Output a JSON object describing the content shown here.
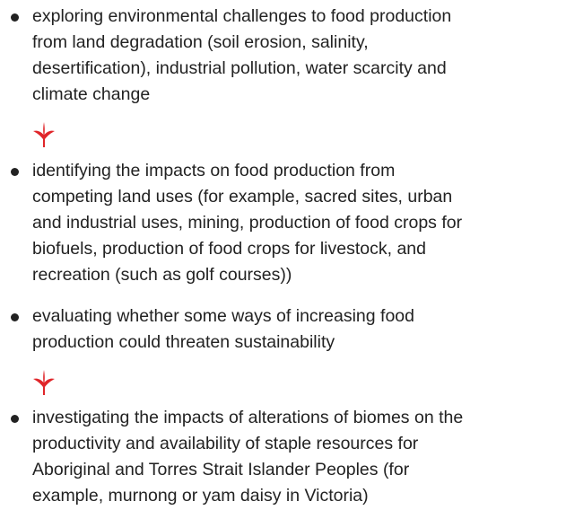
{
  "list": {
    "items": [
      {
        "lines": [
          "exploring environmental challenges to food production",
          "from land degradation (soil erosion, salinity,",
          "desertification), industrial pollution, water scarcity and",
          "climate change"
        ]
      },
      {
        "lines": [
          "identifying the impacts on food production from",
          "competing land uses (for example, sacred sites, urban",
          "and industrial uses, mining, production of food crops for",
          "biofuels, production of food crops for livestock, and",
          "recreation (such as golf courses))"
        ]
      },
      {
        "lines": [
          "evaluating whether some ways of increasing food",
          "production could threaten sustainability"
        ]
      },
      {
        "lines": [
          "investigating the impacts of alterations of biomes on the",
          "productivity and availability of staple resources for",
          "Aboriginal and Torres Strait Islander Peoples (for",
          "example, murnong or yam daisy in Victoria)"
        ]
      }
    ]
  }
}
